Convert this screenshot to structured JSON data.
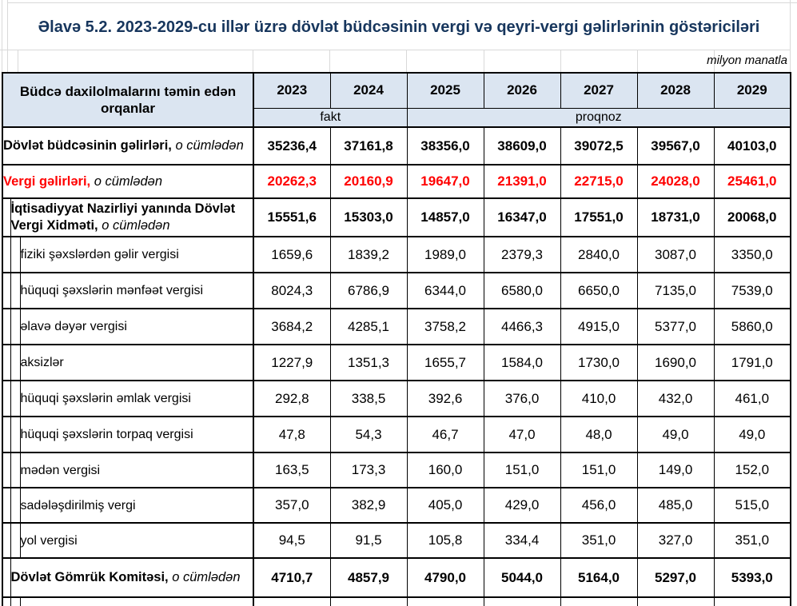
{
  "page": {
    "title": "Əlavə 5.2. 2023-2029-cu illər üzrə dövlət büdcəsinin vergi və qeyri-vergi gəlirlərinin göstəriciləri",
    "unit_note": "milyon manatla"
  },
  "colors": {
    "title_navy": "#17365d",
    "header_fill": "#dbe5f1",
    "highlight_red": "#ff0000",
    "border_black": "#000000"
  },
  "table": {
    "header": {
      "org_label": "Büdcə daxilolmalarını təmin edən orqanlar",
      "years": [
        "2023",
        "2024",
        "2025",
        "2026",
        "2027",
        "2028",
        "2029"
      ],
      "fact_label": "fakt",
      "forecast_label": "proqnoz"
    },
    "rows": [
      {
        "label": "Dövlət büdcəsinin gəlirləri,",
        "label_italic": "o cümlədən",
        "indent": 0,
        "style": "bold",
        "values": [
          "35236,4",
          "37161,8",
          "38356,0",
          "38609,0",
          "39072,5",
          "39567,0",
          "40103,0"
        ]
      },
      {
        "label": "Vergi gəlirləri,",
        "label_italic": "o cümlədən",
        "indent": 0,
        "style": "bold-red",
        "values": [
          "20262,3",
          "20160,9",
          "19647,0",
          "21391,0",
          "22715,0",
          "24028,0",
          "25461,0"
        ]
      },
      {
        "label": "İqtisadiyyat Nazirliyi yanında Dövlət Vergi Xidməti,",
        "label_italic": "o cümlədən",
        "indent": 1,
        "style": "bold",
        "values": [
          "15551,6",
          "15303,0",
          "14857,0",
          "16347,0",
          "17551,0",
          "18731,0",
          "20068,0"
        ]
      },
      {
        "label": "fiziki şəxslərdən gəlir vergisi",
        "indent": 2,
        "style": "normal",
        "values": [
          "1659,6",
          "1839,2",
          "1989,0",
          "2379,3",
          "2840,0",
          "3087,0",
          "3350,0"
        ]
      },
      {
        "label": "hüquqi şəxslərin mənfəət vergisi",
        "indent": 2,
        "style": "normal",
        "values": [
          "8024,3",
          "6786,9",
          "6344,0",
          "6580,0",
          "6650,0",
          "7135,0",
          "7539,0"
        ]
      },
      {
        "label": "əlavə dəyər vergisi",
        "indent": 2,
        "style": "normal",
        "values": [
          "3684,2",
          "4285,1",
          "3758,2",
          "4466,3",
          "4915,0",
          "5377,0",
          "5860,0"
        ]
      },
      {
        "label": "aksizlər",
        "indent": 2,
        "style": "normal",
        "values": [
          "1227,9",
          "1351,3",
          "1655,7",
          "1584,0",
          "1730,0",
          "1690,0",
          "1791,0"
        ]
      },
      {
        "label": "hüquqi şəxslərin əmlak vergisi",
        "indent": 2,
        "style": "normal",
        "values": [
          "292,8",
          "338,5",
          "392,6",
          "376,0",
          "410,0",
          "432,0",
          "461,0"
        ]
      },
      {
        "label": "hüquqi şəxslərin torpaq vergisi",
        "indent": 2,
        "style": "normal",
        "values": [
          "47,8",
          "54,3",
          "46,7",
          "47,0",
          "48,0",
          "49,0",
          "49,0"
        ]
      },
      {
        "label": "mədən vergisi",
        "indent": 2,
        "style": "normal",
        "values": [
          "163,5",
          "173,3",
          "160,0",
          "151,0",
          "151,0",
          "149,0",
          "152,0"
        ]
      },
      {
        "label": "sadələşdirilmiş  vergi",
        "indent": 2,
        "style": "normal",
        "values": [
          "357,0",
          "382,9",
          "405,0",
          "429,0",
          "456,0",
          "485,0",
          "515,0"
        ]
      },
      {
        "label": "yol vergisi",
        "indent": 2,
        "style": "normal",
        "values": [
          "94,5",
          "91,5",
          "105,8",
          "334,4",
          "351,0",
          "327,0",
          "351,0"
        ]
      },
      {
        "label": "Dövlət Gömrük Komitəsi,",
        "label_italic": "o cümlədən",
        "indent": 1,
        "style": "bold",
        "values": [
          "4710,7",
          "4857,9",
          "4790,0",
          "5044,0",
          "5164,0",
          "5297,0",
          "5393,0"
        ]
      },
      {
        "label": "",
        "indent": 2,
        "style": "normal",
        "partial": true,
        "values": [
          "",
          "",
          "",
          "",
          "",
          "",
          ""
        ]
      }
    ]
  }
}
